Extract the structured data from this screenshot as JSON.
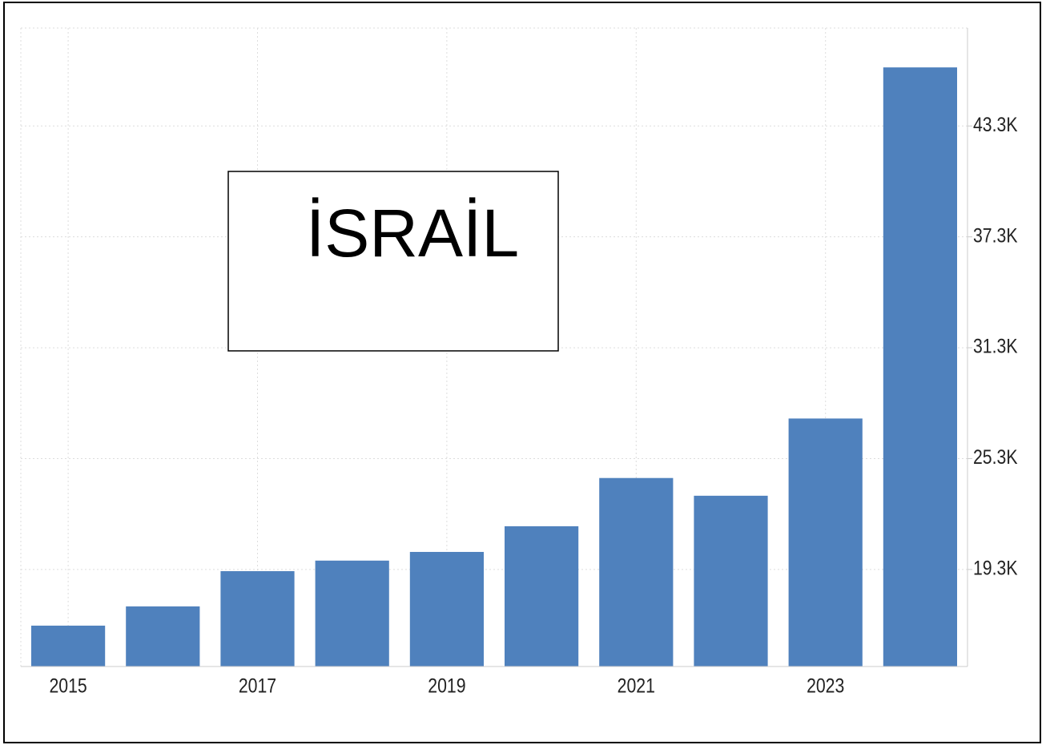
{
  "chart_data": {
    "type": "bar",
    "annotation": "İSRAİL",
    "categories": [
      "2015",
      null,
      "2017",
      null,
      "2019",
      null,
      "2021",
      null,
      "2023",
      null
    ],
    "values": [
      16260,
      17300,
      19210,
      19780,
      20250,
      21640,
      24250,
      23290,
      27470,
      46470
    ],
    "color": "#4f81bd",
    "ylim": [
      14050,
      48600
    ],
    "yticks": [
      {
        "value": 19300,
        "label": "19.3K"
      },
      {
        "value": 25300,
        "label": "25.3K"
      },
      {
        "value": 31300,
        "label": "31.3K"
      },
      {
        "value": 37300,
        "label": "37.3K"
      },
      {
        "value": 43300,
        "label": "43.3K"
      }
    ],
    "grid": true
  }
}
